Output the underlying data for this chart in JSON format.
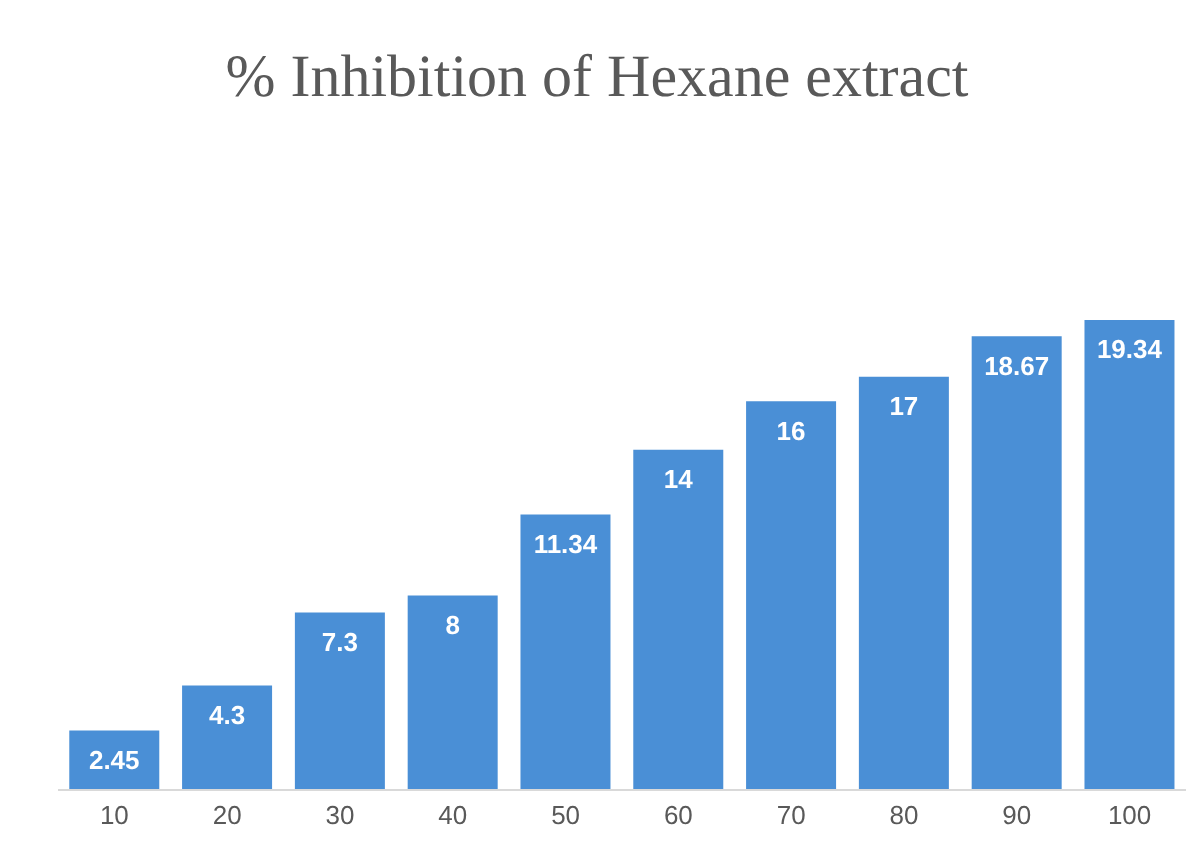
{
  "chart_data": {
    "type": "bar",
    "title": "% Inhibition of Hexane extract",
    "categories": [
      "10",
      "20",
      "30",
      "40",
      "50",
      "60",
      "70",
      "80",
      "90",
      "100"
    ],
    "values": [
      2.45,
      4.3,
      7.3,
      8,
      11.34,
      14,
      16,
      17,
      18.67,
      19.34
    ],
    "color": "#4a8fd6",
    "data_labels": true,
    "grid": false,
    "legend": false
  }
}
